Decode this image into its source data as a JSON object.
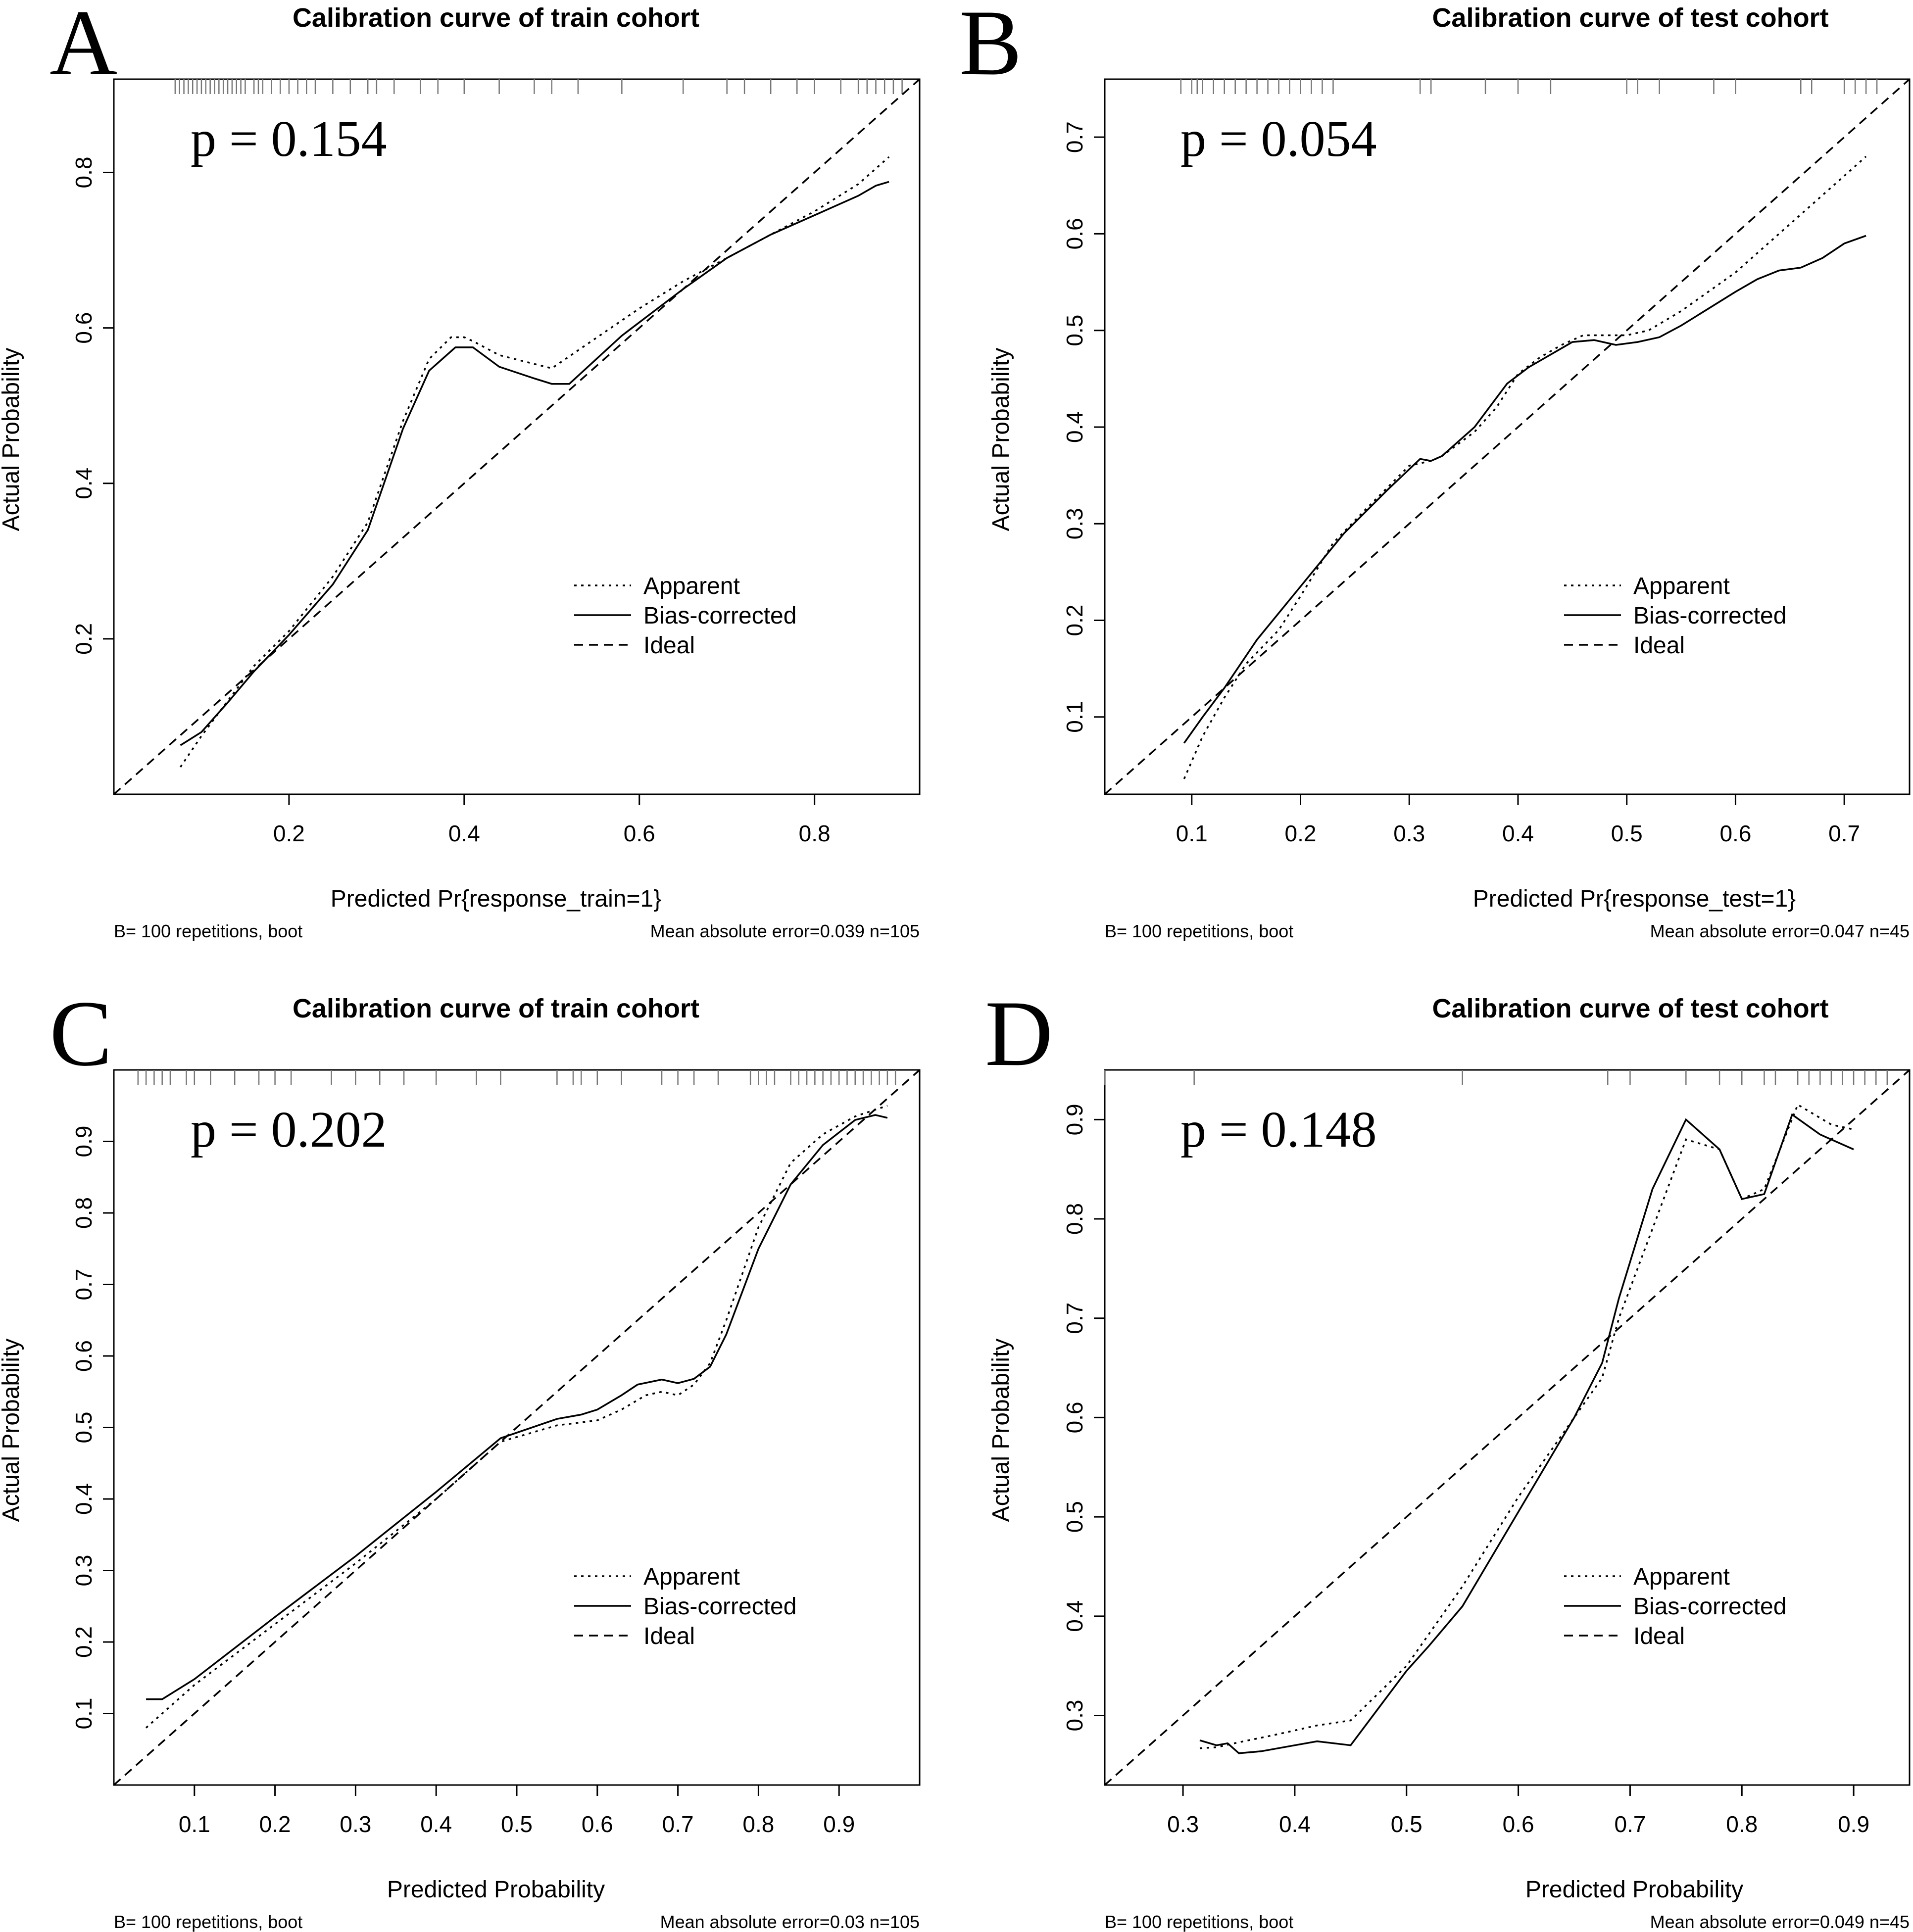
{
  "chart_data": [
    {
      "type": "line",
      "panel": "A",
      "title": "Calibration curve of train cohort",
      "xlabel": "Predicted Pr{response_train=1}",
      "ylabel": "Actual Probability",
      "p_label": "p = 0.154",
      "footer_left": "B= 100 repetitions, boot",
      "footer_right": "Mean absolute error=0.039 n=105",
      "xlim": [
        0.0,
        0.92
      ],
      "ylim": [
        0.0,
        0.92
      ],
      "xticks": [
        0.2,
        0.4,
        0.6,
        0.8
      ],
      "xtick_labels": [
        "0.2",
        "0.4",
        "0.6",
        "0.8"
      ],
      "yticks": [
        0.2,
        0.4,
        0.6,
        0.8
      ],
      "ytick_labels": [
        "0.2",
        "0.4",
        "0.6",
        "0.8"
      ],
      "legend": [
        "Apparent",
        "Bias-corrected",
        "Ideal"
      ],
      "rug": [
        0.07,
        0.075,
        0.08,
        0.085,
        0.09,
        0.095,
        0.1,
        0.105,
        0.11,
        0.115,
        0.12,
        0.125,
        0.13,
        0.135,
        0.14,
        0.145,
        0.15,
        0.16,
        0.165,
        0.17,
        0.18,
        0.19,
        0.2,
        0.21,
        0.22,
        0.23,
        0.25,
        0.27,
        0.29,
        0.3,
        0.32,
        0.35,
        0.37,
        0.4,
        0.44,
        0.48,
        0.5,
        0.53,
        0.58,
        0.65,
        0.7,
        0.72,
        0.75,
        0.78,
        0.8,
        0.83,
        0.85,
        0.86,
        0.87,
        0.88,
        0.89,
        0.9
      ],
      "series": [
        {
          "name": "Apparent",
          "x": [
            0.076,
            0.1,
            0.13,
            0.16,
            0.2,
            0.25,
            0.29,
            0.33,
            0.36,
            0.385,
            0.4,
            0.41,
            0.44,
            0.5,
            0.6,
            0.65,
            0.7,
            0.75,
            0.8,
            0.85,
            0.885
          ],
          "y": [
            0.035,
            0.075,
            0.12,
            0.165,
            0.21,
            0.28,
            0.35,
            0.48,
            0.56,
            0.588,
            0.588,
            0.583,
            0.565,
            0.548,
            0.625,
            0.66,
            0.69,
            0.72,
            0.75,
            0.785,
            0.82
          ]
        },
        {
          "name": "Bias-corrected",
          "x": [
            0.076,
            0.1,
            0.13,
            0.16,
            0.2,
            0.25,
            0.29,
            0.33,
            0.36,
            0.39,
            0.41,
            0.44,
            0.48,
            0.5,
            0.52,
            0.58,
            0.65,
            0.7,
            0.75,
            0.8,
            0.82,
            0.85,
            0.87,
            0.885
          ],
          "y": [
            0.063,
            0.08,
            0.118,
            0.158,
            0.205,
            0.27,
            0.34,
            0.47,
            0.545,
            0.575,
            0.575,
            0.55,
            0.535,
            0.528,
            0.528,
            0.59,
            0.65,
            0.69,
            0.72,
            0.745,
            0.755,
            0.77,
            0.783,
            0.788
          ]
        },
        {
          "name": "Ideal",
          "x": [
            0.0,
            0.92
          ],
          "y": [
            0.0,
            0.92
          ]
        }
      ]
    },
    {
      "type": "line",
      "panel": "B",
      "title": "Calibration curve of test cohort",
      "xlabel": "Predicted Pr{response_test=1}",
      "ylabel": "Actual Probability",
      "p_label": "p = 0.054",
      "footer_left": "B= 100 repetitions, boot",
      "footer_right": "Mean absolute error=0.047 n=45",
      "xlim": [
        0.02,
        0.76
      ],
      "ylim": [
        0.02,
        0.76
      ],
      "xticks": [
        0.1,
        0.2,
        0.3,
        0.4,
        0.5,
        0.6,
        0.7
      ],
      "xtick_labels": [
        "0.1",
        "0.2",
        "0.3",
        "0.4",
        "0.5",
        "0.6",
        "0.7"
      ],
      "yticks": [
        0.1,
        0.2,
        0.3,
        0.4,
        0.5,
        0.6,
        0.7
      ],
      "ytick_labels": [
        "0.1",
        "0.2",
        "0.3",
        "0.4",
        "0.5",
        "0.6",
        "0.7"
      ],
      "legend": [
        "Apparent",
        "Bias-corrected",
        "Ideal"
      ],
      "rug": [
        0.09,
        0.1,
        0.105,
        0.11,
        0.12,
        0.13,
        0.14,
        0.15,
        0.16,
        0.17,
        0.18,
        0.19,
        0.2,
        0.21,
        0.22,
        0.23,
        0.31,
        0.32,
        0.37,
        0.4,
        0.43,
        0.5,
        0.51,
        0.53,
        0.58,
        0.6,
        0.66,
        0.67,
        0.7,
        0.71,
        0.72,
        0.73
      ],
      "series": [
        {
          "name": "Apparent",
          "x": [
            0.093,
            0.11,
            0.13,
            0.15,
            0.18,
            0.2,
            0.23,
            0.26,
            0.3,
            0.32,
            0.33,
            0.36,
            0.38,
            0.4,
            0.42,
            0.44,
            0.46,
            0.48,
            0.5,
            0.52,
            0.55,
            0.6,
            0.65,
            0.7,
            0.72
          ],
          "y": [
            0.036,
            0.08,
            0.12,
            0.155,
            0.19,
            0.225,
            0.28,
            0.315,
            0.36,
            0.365,
            0.37,
            0.395,
            0.42,
            0.455,
            0.472,
            0.485,
            0.495,
            0.495,
            0.495,
            0.5,
            0.52,
            0.56,
            0.61,
            0.66,
            0.68
          ]
        },
        {
          "name": "Bias-corrected",
          "x": [
            0.093,
            0.11,
            0.13,
            0.16,
            0.2,
            0.24,
            0.28,
            0.31,
            0.32,
            0.33,
            0.36,
            0.39,
            0.41,
            0.43,
            0.45,
            0.47,
            0.49,
            0.51,
            0.53,
            0.55,
            0.6,
            0.62,
            0.64,
            0.66,
            0.68,
            0.7,
            0.72
          ],
          "y": [
            0.073,
            0.1,
            0.13,
            0.18,
            0.235,
            0.29,
            0.335,
            0.367,
            0.365,
            0.37,
            0.4,
            0.445,
            0.462,
            0.475,
            0.488,
            0.49,
            0.485,
            0.488,
            0.493,
            0.505,
            0.54,
            0.553,
            0.562,
            0.565,
            0.575,
            0.59,
            0.598
          ]
        },
        {
          "name": "Ideal",
          "x": [
            0.02,
            0.76
          ],
          "y": [
            0.02,
            0.76
          ]
        }
      ]
    },
    {
      "type": "line",
      "panel": "C",
      "title": "Calibration curve of train cohort",
      "xlabel": "Predicted Probability",
      "ylabel": "Actual Probability",
      "p_label": "p = 0.202",
      "footer_left": "B= 100 repetitions, boot",
      "footer_right": "Mean absolute error=0.03 n=105",
      "xlim": [
        0.0,
        1.0
      ],
      "ylim": [
        0.0,
        1.0
      ],
      "xticks": [
        0.1,
        0.2,
        0.3,
        0.4,
        0.5,
        0.6,
        0.7,
        0.8,
        0.9
      ],
      "xtick_labels": [
        "0.1",
        "0.2",
        "0.3",
        "0.4",
        "0.5",
        "0.6",
        "0.7",
        "0.8",
        "0.9"
      ],
      "yticks": [
        0.1,
        0.2,
        0.3,
        0.4,
        0.5,
        0.6,
        0.7,
        0.8,
        0.9
      ],
      "ytick_labels": [
        "0.1",
        "0.2",
        "0.3",
        "0.4",
        "0.5",
        "0.6",
        "0.7",
        "0.8",
        "0.9"
      ],
      "legend": [
        "Apparent",
        "Bias-corrected",
        "Ideal"
      ],
      "rug": [
        0.03,
        0.04,
        0.05,
        0.06,
        0.07,
        0.09,
        0.1,
        0.12,
        0.15,
        0.18,
        0.2,
        0.22,
        0.27,
        0.3,
        0.33,
        0.36,
        0.4,
        0.45,
        0.48,
        0.55,
        0.57,
        0.58,
        0.6,
        0.63,
        0.68,
        0.7,
        0.72,
        0.75,
        0.79,
        0.8,
        0.81,
        0.82,
        0.84,
        0.85,
        0.86,
        0.87,
        0.88,
        0.89,
        0.9,
        0.91,
        0.92,
        0.93,
        0.94,
        0.95,
        0.96,
        0.97
      ],
      "series": [
        {
          "name": "Apparent",
          "x": [
            0.04,
            0.1,
            0.2,
            0.3,
            0.4,
            0.48,
            0.55,
            0.6,
            0.63,
            0.66,
            0.68,
            0.7,
            0.72,
            0.74,
            0.76,
            0.8,
            0.84,
            0.88,
            0.92,
            0.96
          ],
          "y": [
            0.08,
            0.14,
            0.225,
            0.31,
            0.4,
            0.48,
            0.503,
            0.51,
            0.525,
            0.545,
            0.55,
            0.545,
            0.56,
            0.59,
            0.65,
            0.78,
            0.87,
            0.91,
            0.935,
            0.95
          ]
        },
        {
          "name": "Bias-corrected",
          "x": [
            0.04,
            0.06,
            0.1,
            0.2,
            0.3,
            0.4,
            0.48,
            0.55,
            0.58,
            0.6,
            0.63,
            0.65,
            0.68,
            0.7,
            0.72,
            0.74,
            0.76,
            0.8,
            0.84,
            0.88,
            0.92,
            0.945,
            0.96
          ],
          "y": [
            0.12,
            0.12,
            0.148,
            0.235,
            0.32,
            0.41,
            0.485,
            0.512,
            0.518,
            0.525,
            0.545,
            0.56,
            0.567,
            0.562,
            0.568,
            0.585,
            0.63,
            0.75,
            0.84,
            0.895,
            0.93,
            0.937,
            0.933
          ]
        },
        {
          "name": "Ideal",
          "x": [
            0.0,
            1.0
          ],
          "y": [
            0.0,
            1.0
          ]
        }
      ]
    },
    {
      "type": "line",
      "panel": "D",
      "title": "Calibration curve of test cohort",
      "xlabel": "Predicted Probability",
      "ylabel": "Actual Probability",
      "p_label": "p = 0.148",
      "footer_left": "B= 100 repetitions, boot",
      "footer_right": "Mean absolute error=0.049 n=45",
      "xlim": [
        0.23,
        0.95
      ],
      "ylim": [
        0.23,
        0.95
      ],
      "xticks": [
        0.3,
        0.4,
        0.5,
        0.6,
        0.7,
        0.8,
        0.9
      ],
      "xtick_labels": [
        "0.3",
        "0.4",
        "0.5",
        "0.6",
        "0.7",
        "0.8",
        "0.9"
      ],
      "yticks": [
        0.3,
        0.4,
        0.5,
        0.6,
        0.7,
        0.8,
        0.9
      ],
      "ytick_labels": [
        "0.3",
        "0.4",
        "0.5",
        "0.6",
        "0.7",
        "0.8",
        "0.9"
      ],
      "legend": [
        "Apparent",
        "Bias-corrected",
        "Ideal"
      ],
      "rug": [
        0.23,
        0.31,
        0.55,
        0.68,
        0.7,
        0.75,
        0.78,
        0.8,
        0.82,
        0.83,
        0.85,
        0.86,
        0.87,
        0.88,
        0.89,
        0.9,
        0.91,
        0.92,
        0.93
      ],
      "series": [
        {
          "name": "Apparent",
          "x": [
            0.315,
            0.33,
            0.35,
            0.38,
            0.42,
            0.45,
            0.5,
            0.55,
            0.6,
            0.65,
            0.675,
            0.69,
            0.72,
            0.75,
            0.78,
            0.8,
            0.82,
            0.85,
            0.88,
            0.9
          ],
          "y": [
            0.267,
            0.268,
            0.273,
            0.28,
            0.29,
            0.295,
            0.35,
            0.43,
            0.52,
            0.6,
            0.64,
            0.7,
            0.79,
            0.88,
            0.87,
            0.82,
            0.83,
            0.915,
            0.895,
            0.89
          ]
        },
        {
          "name": "Bias-corrected",
          "x": [
            0.315,
            0.33,
            0.34,
            0.35,
            0.37,
            0.4,
            0.42,
            0.45,
            0.5,
            0.52,
            0.55,
            0.6,
            0.65,
            0.675,
            0.69,
            0.72,
            0.75,
            0.78,
            0.8,
            0.82,
            0.845,
            0.87,
            0.9
          ],
          "y": [
            0.275,
            0.27,
            0.272,
            0.262,
            0.264,
            0.27,
            0.274,
            0.27,
            0.345,
            0.37,
            0.41,
            0.505,
            0.6,
            0.655,
            0.72,
            0.83,
            0.9,
            0.87,
            0.82,
            0.825,
            0.905,
            0.885,
            0.87
          ]
        },
        {
          "name": "Ideal",
          "x": [
            0.23,
            0.95
          ],
          "y": [
            0.23,
            0.95
          ]
        }
      ]
    }
  ]
}
